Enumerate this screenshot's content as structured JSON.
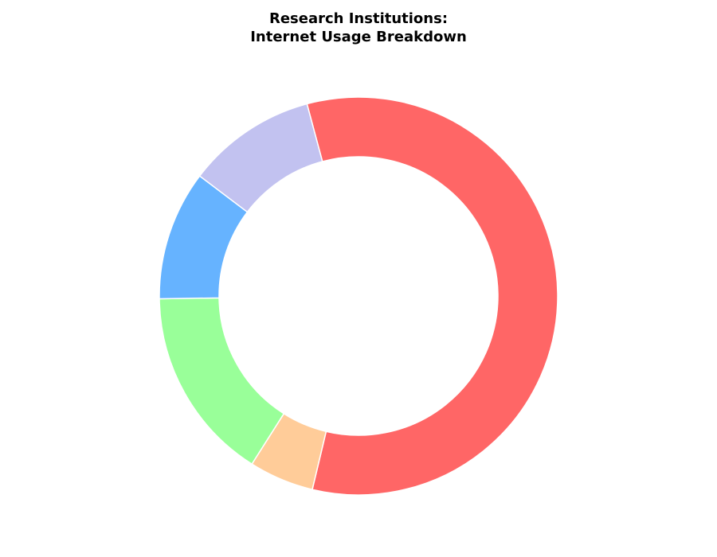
{
  "chart_data": {
    "type": "pie",
    "donut": true,
    "title_lines": [
      "Research Institutions:",
      "Internet Usage Breakdown"
    ],
    "start_angle_deg": 105,
    "direction": "clockwise",
    "legend": false,
    "slices": [
      {
        "value": 55,
        "color": "#ff6666"
      },
      {
        "value": 5,
        "color": "#ffcc99"
      },
      {
        "value": 15,
        "color": "#99ff99"
      },
      {
        "value": 10,
        "color": "#66b3ff"
      },
      {
        "value": 10,
        "color": "#c2c2f0"
      }
    ]
  }
}
